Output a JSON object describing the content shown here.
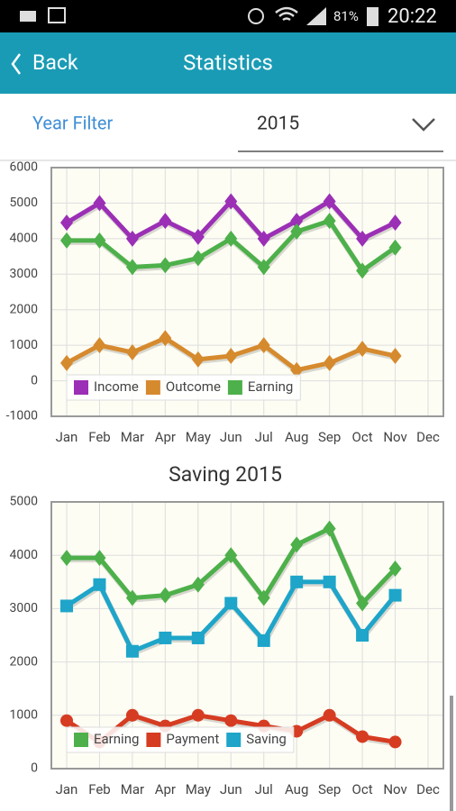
{
  "status_bar": {
    "battery": "81%",
    "time": "20:22"
  },
  "app_bar": {
    "back": "Back",
    "title": "Statistics"
  },
  "filter": {
    "label": "Year Filter",
    "value": "2015"
  },
  "chart_data": [
    {
      "type": "line",
      "categories": [
        "Jan",
        "Feb",
        "Mar",
        "Apr",
        "May",
        "Jun",
        "Jul",
        "Aug",
        "Sep",
        "Oct",
        "Nov",
        "Dec"
      ],
      "series": [
        {
          "name": "Income",
          "color": "#9b2fb5",
          "marker": "diamond",
          "values": [
            4450,
            5000,
            4000,
            4500,
            4050,
            5050,
            4000,
            4500,
            5050,
            4000,
            4450,
            null
          ]
        },
        {
          "name": "Outcome",
          "color": "#d68a2e",
          "marker": "diamond",
          "values": [
            500,
            1000,
            800,
            1200,
            600,
            700,
            1000,
            300,
            500,
            900,
            700,
            null
          ]
        },
        {
          "name": "Earning",
          "color": "#4db04a",
          "marker": "diamond",
          "values": [
            3950,
            3950,
            3200,
            3250,
            3450,
            4000,
            3200,
            4200,
            4500,
            3100,
            3750,
            null
          ]
        }
      ],
      "ylim": [
        -1000,
        6000
      ],
      "yticks": [
        -1000,
        0,
        1000,
        2000,
        3000,
        4000,
        5000,
        6000
      ],
      "grid": true,
      "legend": "lower left"
    },
    {
      "type": "line",
      "title": "Saving 2015",
      "categories": [
        "Jan",
        "Feb",
        "Mar",
        "Apr",
        "May",
        "Jun",
        "Jul",
        "Aug",
        "Sep",
        "Oct",
        "Nov",
        "Dec"
      ],
      "series": [
        {
          "name": "Earning",
          "color": "#4db04a",
          "marker": "diamond",
          "values": [
            3950,
            3950,
            3200,
            3250,
            3450,
            4000,
            3200,
            4200,
            4500,
            3100,
            3750,
            null
          ]
        },
        {
          "name": "Payment",
          "color": "#d63c22",
          "marker": "circle",
          "values": [
            900,
            500,
            1000,
            800,
            1000,
            900,
            800,
            700,
            1000,
            600,
            500,
            null
          ]
        },
        {
          "name": "Saving",
          "color": "#1ea5c9",
          "marker": "square",
          "values": [
            3050,
            3450,
            2200,
            2450,
            2450,
            3100,
            2400,
            3500,
            3500,
            2500,
            3250,
            null
          ]
        }
      ],
      "ylim": [
        0,
        5000
      ],
      "yticks": [
        0,
        1000,
        2000,
        3000,
        4000,
        5000
      ],
      "grid": true,
      "legend": "lower left"
    }
  ]
}
